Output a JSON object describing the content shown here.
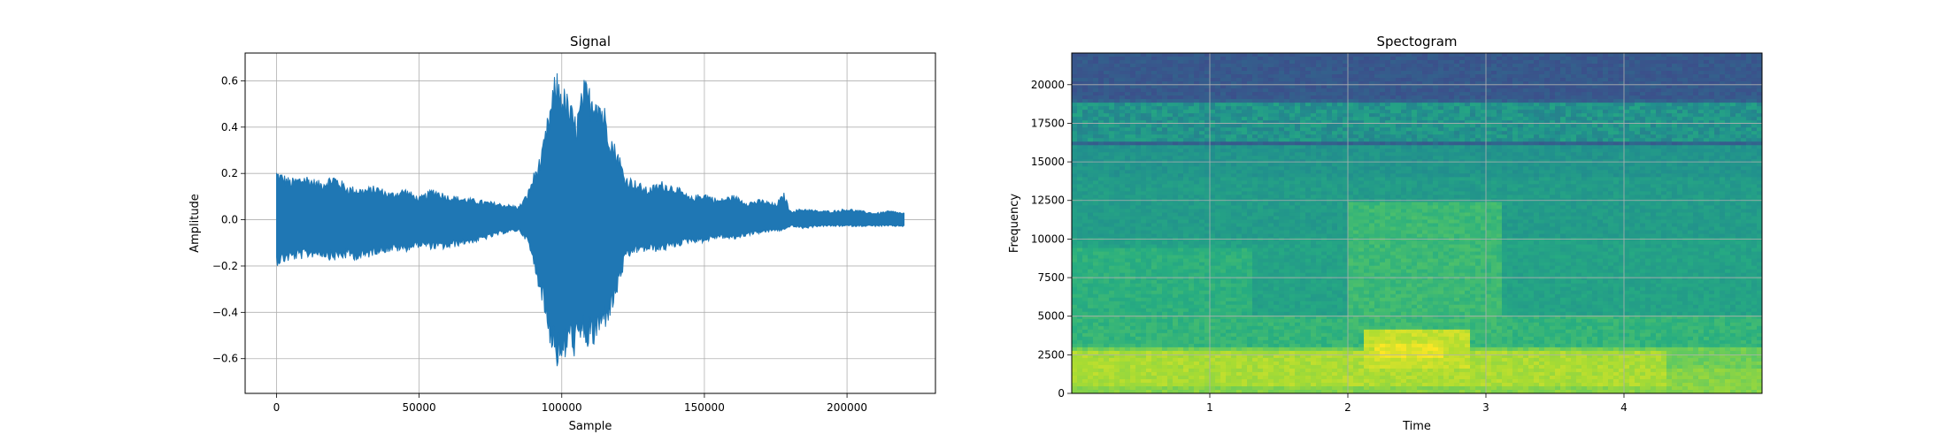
{
  "chart_data": [
    {
      "type": "line",
      "title": "Signal",
      "xlabel": "Sample",
      "ylabel": "Amplitude",
      "xlim": [
        -11000,
        231000
      ],
      "ylim": [
        -0.75,
        0.72
      ],
      "xticks": [
        0,
        50000,
        100000,
        150000,
        200000
      ],
      "xtick_labels": [
        "0",
        "50000",
        "100000",
        "150000",
        "200000"
      ],
      "yticks": [
        -0.6,
        -0.4,
        -0.2,
        0.0,
        0.2,
        0.4,
        0.6
      ],
      "ytick_labels": [
        "−0.6",
        "−0.4",
        "−0.2",
        "0.0",
        "0.2",
        "0.4",
        "0.6"
      ],
      "grid": true,
      "color": "#1f77b4",
      "series": [
        {
          "x": [
            0,
            5000,
            10000,
            15000,
            20000,
            25000,
            30000,
            35000,
            40000,
            45000,
            50000,
            55000,
            60000,
            65000,
            70000,
            75000,
            80000,
            85000,
            88000,
            90000,
            93000,
            95000,
            98000,
            100000,
            102000,
            105000,
            108000,
            110000,
            112000,
            115000,
            118000,
            120000,
            122000,
            125000,
            130000,
            135000,
            140000,
            145000,
            150000,
            155000,
            160000,
            165000,
            170000,
            175000,
            178000,
            180000,
            185000,
            190000,
            195000,
            200000,
            205000,
            210000,
            215000,
            220000
          ],
          "upper": [
            0.22,
            0.18,
            0.2,
            0.17,
            0.2,
            0.15,
            0.14,
            0.15,
            0.12,
            0.14,
            0.1,
            0.14,
            0.11,
            0.1,
            0.09,
            0.08,
            0.07,
            0.06,
            0.12,
            0.2,
            0.3,
            0.45,
            0.66,
            0.6,
            0.55,
            0.45,
            0.62,
            0.58,
            0.6,
            0.5,
            0.35,
            0.3,
            0.2,
            0.18,
            0.14,
            0.17,
            0.15,
            0.1,
            0.12,
            0.09,
            0.11,
            0.08,
            0.09,
            0.07,
            0.12,
            0.04,
            0.05,
            0.04,
            0.04,
            0.05,
            0.04,
            0.03,
            0.04,
            0.03
          ],
          "lower": [
            -0.2,
            -0.18,
            -0.17,
            -0.16,
            -0.18,
            -0.17,
            -0.18,
            -0.15,
            -0.14,
            -0.14,
            -0.12,
            -0.13,
            -0.13,
            -0.11,
            -0.1,
            -0.08,
            -0.06,
            -0.05,
            -0.1,
            -0.2,
            -0.35,
            -0.5,
            -0.64,
            -0.68,
            -0.58,
            -0.6,
            -0.55,
            -0.58,
            -0.55,
            -0.48,
            -0.4,
            -0.3,
            -0.2,
            -0.15,
            -0.14,
            -0.14,
            -0.12,
            -0.1,
            -0.1,
            -0.08,
            -0.09,
            -0.07,
            -0.06,
            -0.05,
            -0.05,
            -0.03,
            -0.04,
            -0.03,
            -0.03,
            -0.03,
            -0.03,
            -0.03,
            -0.03,
            -0.03
          ]
        }
      ]
    },
    {
      "type": "heatmap",
      "title": "Spectogram",
      "xlabel": "Time",
      "ylabel": "Frequency",
      "xlim": [
        0,
        5.0
      ],
      "ylim": [
        0,
        22050
      ],
      "xticks": [
        1,
        2,
        3,
        4
      ],
      "xtick_labels": [
        "1",
        "2",
        "3",
        "4"
      ],
      "yticks": [
        0,
        2500,
        5000,
        7500,
        10000,
        12500,
        15000,
        17500,
        20000
      ],
      "ytick_labels": [
        "0",
        "2500",
        "5000",
        "7500",
        "10000",
        "12500",
        "15000",
        "17500",
        "20000"
      ],
      "grid": true,
      "colormap": "viridis",
      "bands": [
        {
          "f0": 19000,
          "f1": 22050,
          "level": 0.28
        },
        {
          "f0": 16000,
          "f1": 19000,
          "level": 0.32
        },
        {
          "f0": 14000,
          "f1": 16000,
          "level": 0.52
        },
        {
          "f0": 10000,
          "f1": 14000,
          "level": 0.55
        },
        {
          "f0": 5000,
          "f1": 10000,
          "level": 0.58
        },
        {
          "f0": 3000,
          "f1": 5000,
          "level": 0.66
        },
        {
          "f0": 1500,
          "f1": 3000,
          "level": 0.78
        },
        {
          "f0": 0,
          "f1": 1500,
          "level": 0.82
        }
      ],
      "blobs": [
        {
          "t0": 0.0,
          "t1": 5.0,
          "f0": 16300,
          "f1": 18900,
          "level": 0.56
        },
        {
          "t0": 2.0,
          "t1": 3.1,
          "f0": 3500,
          "f1": 12500,
          "level": 0.68
        },
        {
          "t0": 2.1,
          "t1": 2.9,
          "f0": 1500,
          "f1": 4200,
          "level": 0.92
        },
        {
          "t0": 0.0,
          "t1": 1.3,
          "f0": 5000,
          "f1": 9500,
          "level": 0.64
        },
        {
          "t0": 0.0,
          "t1": 4.3,
          "f0": 500,
          "f1": 2800,
          "level": 0.88
        },
        {
          "t0": 2.2,
          "t1": 2.7,
          "f0": 2200,
          "f1": 3200,
          "level": 0.97
        }
      ]
    }
  ]
}
